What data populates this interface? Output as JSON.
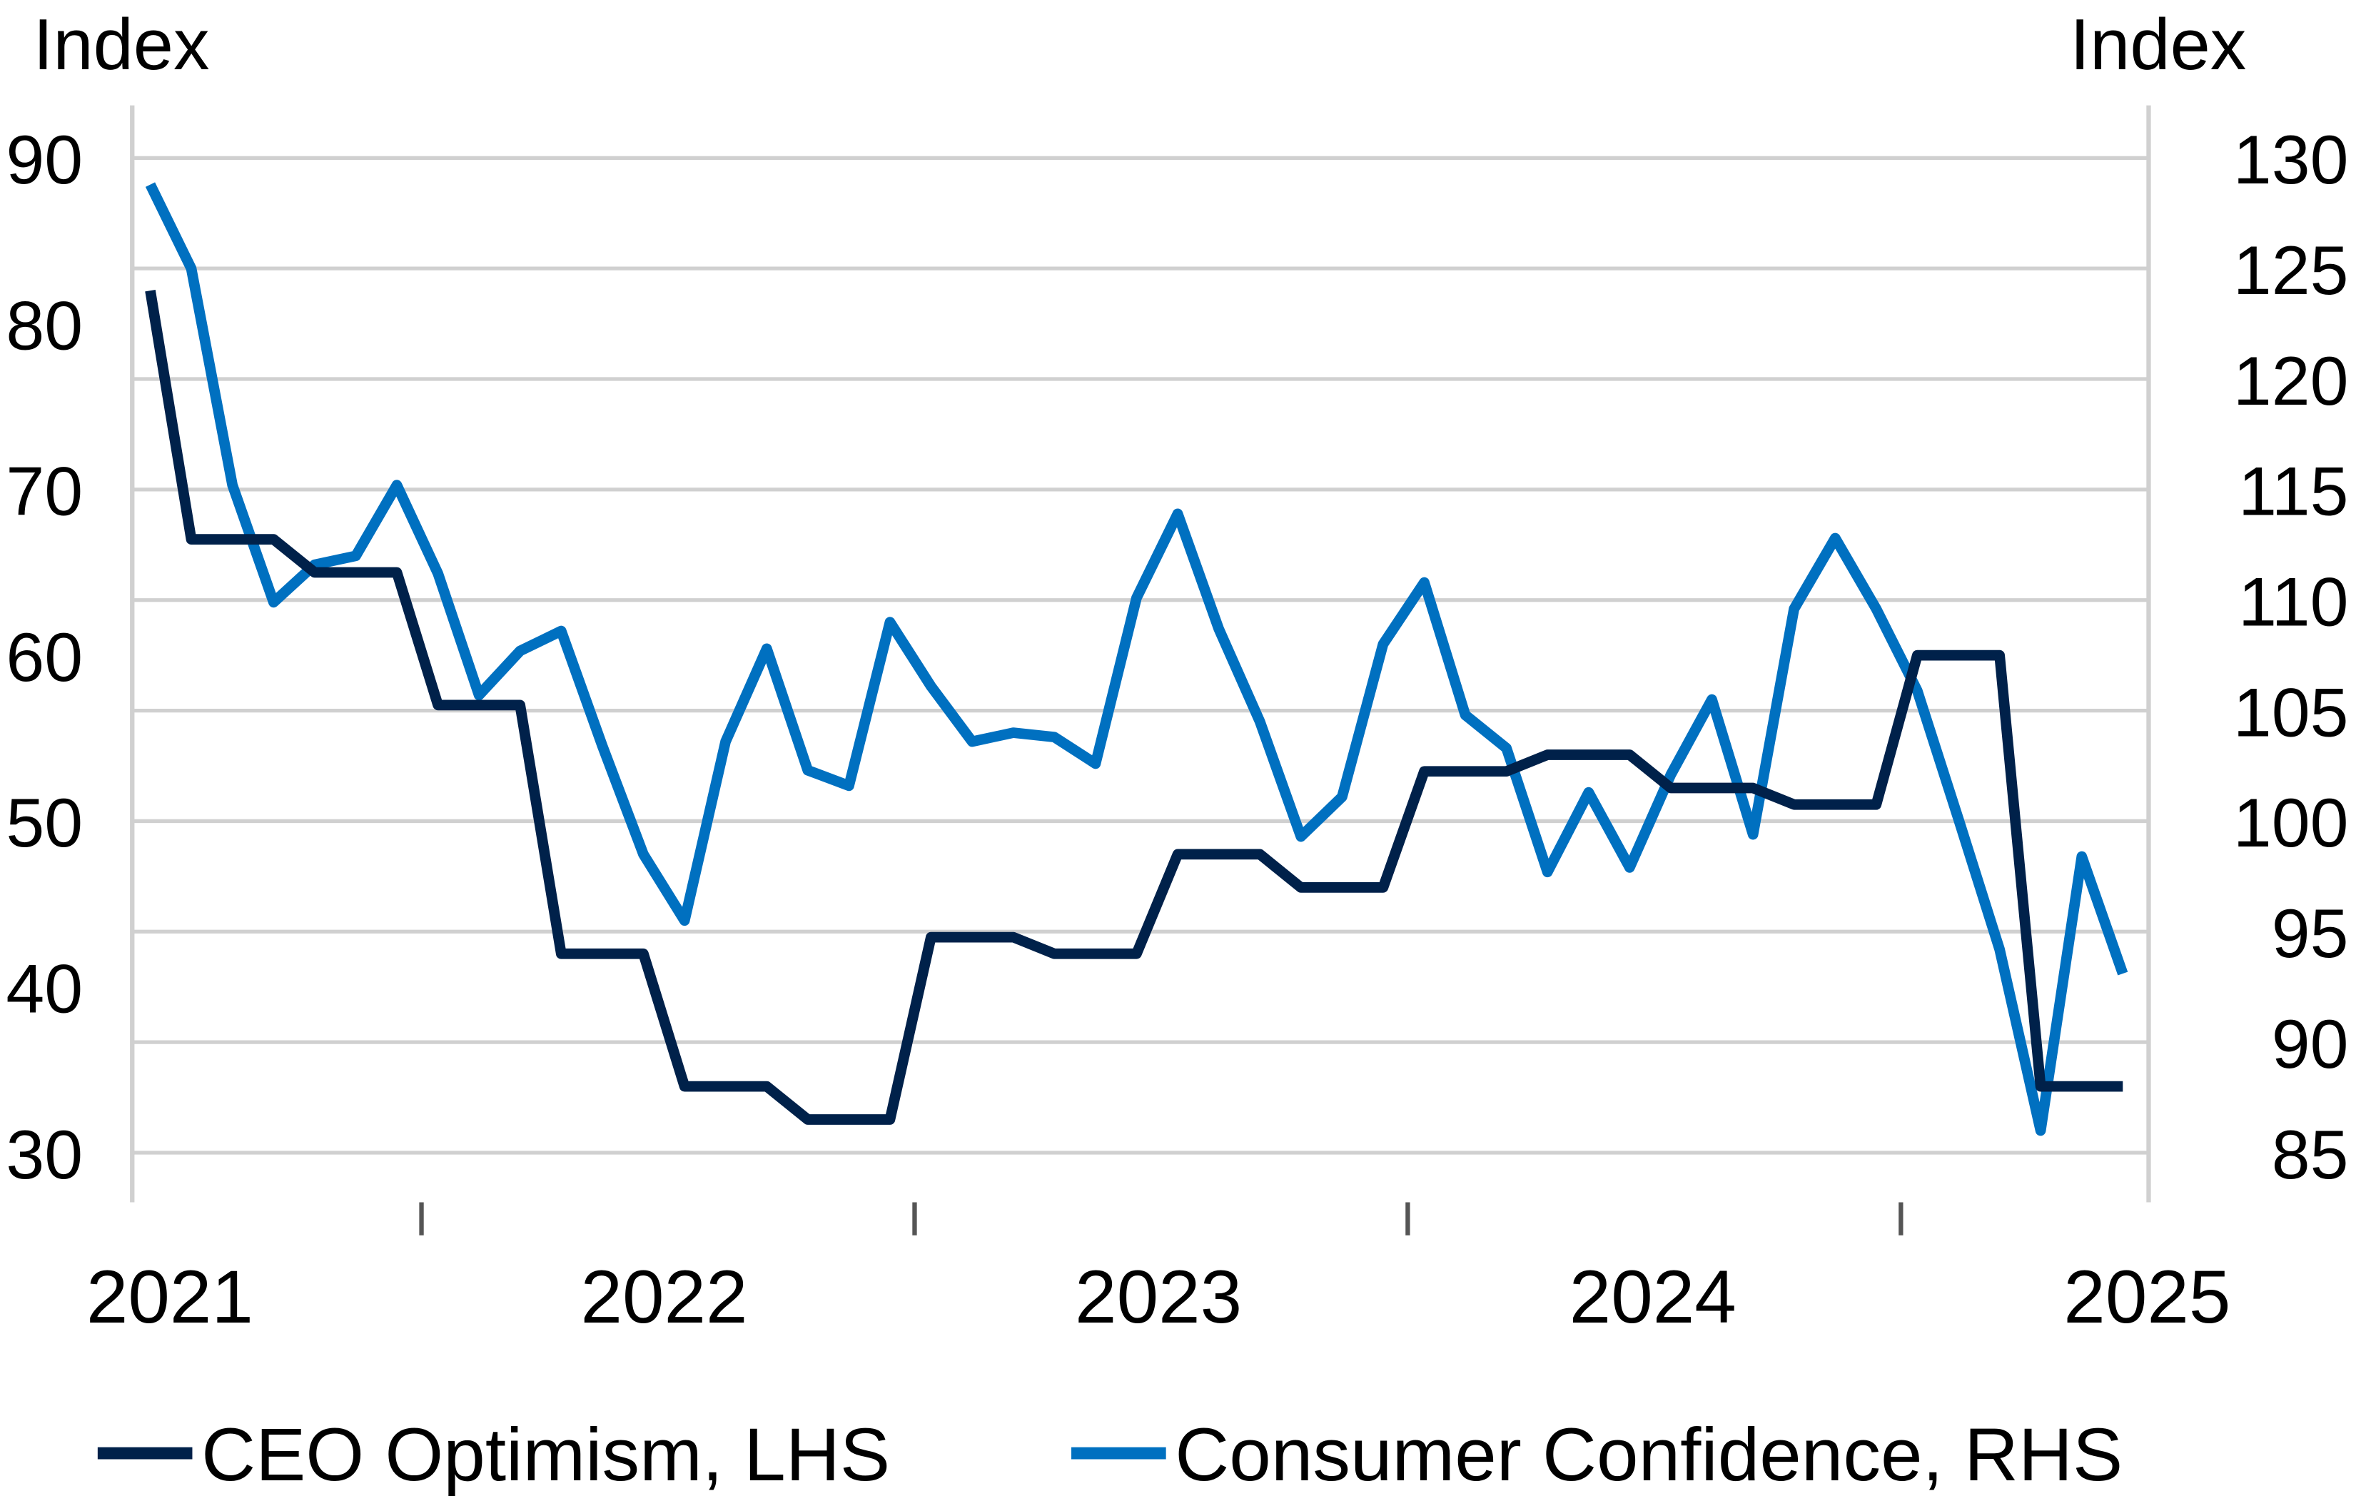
{
  "chart_data": {
    "type": "line",
    "title": "",
    "left_axis": {
      "label": "Index",
      "ticks": [
        90,
        80,
        70,
        60,
        50,
        40,
        30
      ],
      "ylim": [
        30,
        90
      ]
    },
    "right_axis": {
      "label": "Index",
      "ticks": [
        130,
        125,
        120,
        115,
        110,
        105,
        100,
        95,
        90,
        85
      ],
      "ylim": [
        85,
        130
      ]
    },
    "x_labels": [
      "2021",
      "2022",
      "2023",
      "2024",
      "2025"
    ],
    "x_range": [
      "2021-01",
      "2025-01"
    ],
    "frequency": "monthly",
    "grid": true,
    "legend_placement": "bottom",
    "series": [
      {
        "name": "CEO Optimism, LHS",
        "axis": "left",
        "color": "#00214a",
        "values": [
          82,
          67,
          67,
          67,
          65,
          65,
          65,
          57,
          57,
          57,
          42,
          42,
          42,
          34,
          34,
          34,
          32,
          32,
          32,
          43,
          43,
          43,
          42,
          42,
          42,
          48,
          48,
          48,
          46,
          46,
          46,
          53,
          53,
          53,
          54,
          54,
          54,
          52,
          52,
          52,
          51,
          51,
          51,
          60,
          60,
          60,
          34,
          34,
          34
        ]
      },
      {
        "name": "Consumer Confidence, RHS",
        "axis": "right",
        "color": "#0070c0",
        "values": [
          128.8,
          125.0,
          115.2,
          109.9,
          111.6,
          112.0,
          115.2,
          111.2,
          105.7,
          107.7,
          108.6,
          103.4,
          98.5,
          95.5,
          103.6,
          107.8,
          102.3,
          101.6,
          109.0,
          106.1,
          103.6,
          104.0,
          103.8,
          102.6,
          110.1,
          113.9,
          108.7,
          104.5,
          99.3,
          101.1,
          108.0,
          110.8,
          104.8,
          103.3,
          97.7,
          101.3,
          97.9,
          102.1,
          105.5,
          99.4,
          109.6,
          112.8,
          109.6,
          105.9,
          100.1,
          94.2,
          86.0,
          98.4,
          93.1
        ]
      }
    ]
  }
}
